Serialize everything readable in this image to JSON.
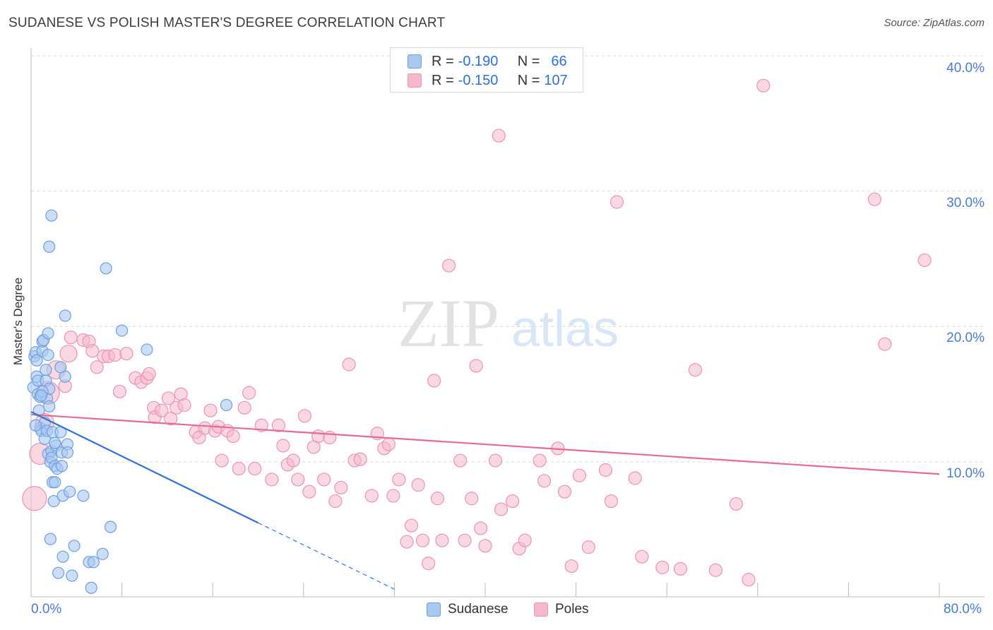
{
  "title": "SUDANESE VS POLISH MASTER'S DEGREE CORRELATION CHART",
  "source": "Source: ZipAtlas.com",
  "watermark": {
    "zip": "ZIP",
    "atlas": "atlas"
  },
  "legend": {
    "sudanese": {
      "r_label": "R =",
      "r": "-0.190",
      "n_label": "N =",
      "n": "66"
    },
    "poles": {
      "r_label": "R =",
      "r": "-0.150",
      "n_label": "N =",
      "n": "107"
    }
  },
  "bottom_legend": {
    "sudanese": "Sudanese",
    "poles": "Poles"
  },
  "colors": {
    "sudanese_fill": "#a9c8f0",
    "sudanese_stroke": "#6d9fe0",
    "sudanese_line": "#2f74d9",
    "poles_fill": "#f5b8cb",
    "poles_stroke": "#ec94b0",
    "poles_line": "#e46b94",
    "grid": "#d9d9d9",
    "tick": "#4a7bd0"
  },
  "chart_data": {
    "type": "scatter",
    "title": "SUDANESE VS POLISH MASTER'S DEGREE CORRELATION CHART",
    "xlabel": "",
    "ylabel": "Master's Degree",
    "xlim": [
      0,
      80
    ],
    "ylim": [
      0,
      41
    ],
    "x_tick_labels": [
      "0.0%",
      "80.0%"
    ],
    "y_ticks": [
      10,
      20,
      30,
      40
    ],
    "y_tick_labels": [
      "10.0%",
      "20.0%",
      "30.0%",
      "40.0%"
    ],
    "grid": true,
    "series": [
      {
        "name": "Sudanese",
        "r": -0.19,
        "n": 66,
        "trend": {
          "x0": 0,
          "y0": 13.7,
          "x1": 20,
          "y1": 5.5,
          "dashed_to_x": 32,
          "dashed_to_y": 0.6
        },
        "points": [
          [
            0.2,
            15.5
          ],
          [
            0.3,
            17.8
          ],
          [
            0.4,
            18.1
          ],
          [
            0.5,
            16.3
          ],
          [
            0.6,
            16
          ],
          [
            0.6,
            15
          ],
          [
            0.7,
            13.8
          ],
          [
            0.8,
            14.8
          ],
          [
            0.8,
            12.5
          ],
          [
            0.9,
            12.3
          ],
          [
            1,
            18.2
          ],
          [
            1,
            18.9
          ],
          [
            1.1,
            19
          ],
          [
            1.2,
            12.9
          ],
          [
            1.2,
            11.7
          ],
          [
            1.3,
            16.8
          ],
          [
            1.3,
            16
          ],
          [
            1.4,
            14.7
          ],
          [
            1.4,
            12.3
          ],
          [
            1.5,
            19.5
          ],
          [
            1.5,
            17.9
          ],
          [
            1.5,
            10.6
          ],
          [
            1.6,
            15.4
          ],
          [
            1.6,
            14.1
          ],
          [
            1.7,
            10
          ],
          [
            1.7,
            4.3
          ],
          [
            1.8,
            28.2
          ],
          [
            1.8,
            10.8
          ],
          [
            1.8,
            10.3
          ],
          [
            1.9,
            12.2
          ],
          [
            1.9,
            8.5
          ],
          [
            2,
            7.1
          ],
          [
            2.1,
            8.5
          ],
          [
            2.1,
            9.7
          ],
          [
            2.2,
            11.2
          ],
          [
            2.3,
            9.5
          ],
          [
            2.4,
            1.8
          ],
          [
            2.6,
            12.2
          ],
          [
            2.7,
            10.7
          ],
          [
            2.7,
            9.7
          ],
          [
            2.8,
            3
          ],
          [
            2.8,
            7.5
          ],
          [
            3,
            20.8
          ],
          [
            3,
            16.3
          ],
          [
            3.2,
            11.3
          ],
          [
            3.2,
            10.7
          ],
          [
            3.4,
            7.8
          ],
          [
            3.6,
            1.6
          ],
          [
            3.8,
            3.8
          ],
          [
            4.6,
            7.5
          ],
          [
            5.1,
            2.6
          ],
          [
            5.3,
            0.7
          ],
          [
            5.5,
            2.6
          ],
          [
            6.3,
            3.2
          ],
          [
            6.6,
            24.3
          ],
          [
            7,
            5.2
          ],
          [
            8,
            19.7
          ],
          [
            10.2,
            18.3
          ],
          [
            17.2,
            14.2
          ],
          [
            0.4,
            12.7
          ],
          [
            0.5,
            17.5
          ],
          [
            1,
            15.2
          ],
          [
            1.6,
            25.9
          ],
          [
            2.1,
            11.4
          ],
          [
            2.6,
            17
          ],
          [
            0.9,
            14.9
          ]
        ]
      },
      {
        "name": "Poles",
        "r": -0.15,
        "n": 107,
        "trend": {
          "x0": 0,
          "y0": 13.5,
          "x1": 80,
          "y1": 9.1
        },
        "points": [
          [
            0.3,
            7.3
          ],
          [
            0.8,
            10.6
          ],
          [
            1.2,
            12.9
          ],
          [
            1.5,
            15.1
          ],
          [
            2.2,
            16.8
          ],
          [
            3,
            15.6
          ],
          [
            3.3,
            18
          ],
          [
            3.5,
            19.2
          ],
          [
            4.6,
            19
          ],
          [
            5.1,
            18.9
          ],
          [
            5.4,
            18.2
          ],
          [
            5.8,
            17
          ],
          [
            6.4,
            17.8
          ],
          [
            6.8,
            17.8
          ],
          [
            7.4,
            17.9
          ],
          [
            7.8,
            15.2
          ],
          [
            8.4,
            18
          ],
          [
            9.2,
            16.2
          ],
          [
            9.7,
            15.9
          ],
          [
            10.2,
            16.2
          ],
          [
            10.4,
            16.5
          ],
          [
            10.8,
            14
          ],
          [
            10.9,
            13.3
          ],
          [
            11.5,
            13.8
          ],
          [
            12.1,
            14.7
          ],
          [
            12.3,
            13.2
          ],
          [
            12.8,
            14
          ],
          [
            13.2,
            15
          ],
          [
            13.5,
            14.2
          ],
          [
            14.5,
            12.2
          ],
          [
            14.8,
            11.8
          ],
          [
            15.3,
            12.5
          ],
          [
            15.8,
            13.8
          ],
          [
            16.2,
            12.3
          ],
          [
            16.5,
            12.6
          ],
          [
            16.8,
            10.1
          ],
          [
            17.3,
            12.3
          ],
          [
            17.8,
            11.9
          ],
          [
            18.3,
            9.5
          ],
          [
            18.8,
            14
          ],
          [
            19.2,
            15.1
          ],
          [
            19.7,
            9.5
          ],
          [
            20.3,
            12.7
          ],
          [
            21.2,
            8.7
          ],
          [
            21.8,
            12.7
          ],
          [
            22.2,
            11.2
          ],
          [
            22.6,
            9.8
          ],
          [
            23.1,
            10.1
          ],
          [
            23.5,
            8.7
          ],
          [
            24.1,
            13.4
          ],
          [
            24.5,
            7.8
          ],
          [
            24.9,
            11.1
          ],
          [
            25.3,
            11.9
          ],
          [
            25.8,
            8.7
          ],
          [
            26.3,
            11.8
          ],
          [
            26.8,
            7.1
          ],
          [
            27.3,
            8.1
          ],
          [
            28,
            17.2
          ],
          [
            28.5,
            10.1
          ],
          [
            29,
            10.2
          ],
          [
            30,
            7.5
          ],
          [
            30.5,
            12.1
          ],
          [
            31.1,
            11
          ],
          [
            31.5,
            11.3
          ],
          [
            31.9,
            7.5
          ],
          [
            32.4,
            8.7
          ],
          [
            33.1,
            4.1
          ],
          [
            33.5,
            5.3
          ],
          [
            34.1,
            8.3
          ],
          [
            34.5,
            4.2
          ],
          [
            35,
            2.5
          ],
          [
            35.5,
            16
          ],
          [
            35.8,
            7.3
          ],
          [
            36.2,
            4.2
          ],
          [
            37.8,
            10.1
          ],
          [
            38.2,
            4.2
          ],
          [
            38.8,
            7.3
          ],
          [
            39.6,
            5.1
          ],
          [
            40,
            3.8
          ],
          [
            40.9,
            10.1
          ],
          [
            41.4,
            6.5
          ],
          [
            42.4,
            7.1
          ],
          [
            43,
            3.6
          ],
          [
            43.5,
            4.2
          ],
          [
            44.8,
            10.1
          ],
          [
            45.2,
            8.6
          ],
          [
            46.4,
            11
          ],
          [
            47,
            7.8
          ],
          [
            47.6,
            2.3
          ],
          [
            48.3,
            9
          ],
          [
            49.1,
            3.7
          ],
          [
            50.6,
            9.4
          ],
          [
            51.1,
            7.1
          ],
          [
            51.6,
            29.2
          ],
          [
            53.2,
            8.8
          ],
          [
            53.8,
            3
          ],
          [
            55.6,
            2.2
          ],
          [
            57.2,
            2.1
          ],
          [
            58.5,
            16.8
          ],
          [
            60.3,
            2
          ],
          [
            62.1,
            6.9
          ],
          [
            63.2,
            1.3
          ],
          [
            64.5,
            37.8
          ],
          [
            74.3,
            29.4
          ],
          [
            75.2,
            18.7
          ],
          [
            78.7,
            24.9
          ],
          [
            41.2,
            34.1
          ],
          [
            36.8,
            24.5
          ],
          [
            39.2,
            17.1
          ]
        ]
      }
    ]
  }
}
